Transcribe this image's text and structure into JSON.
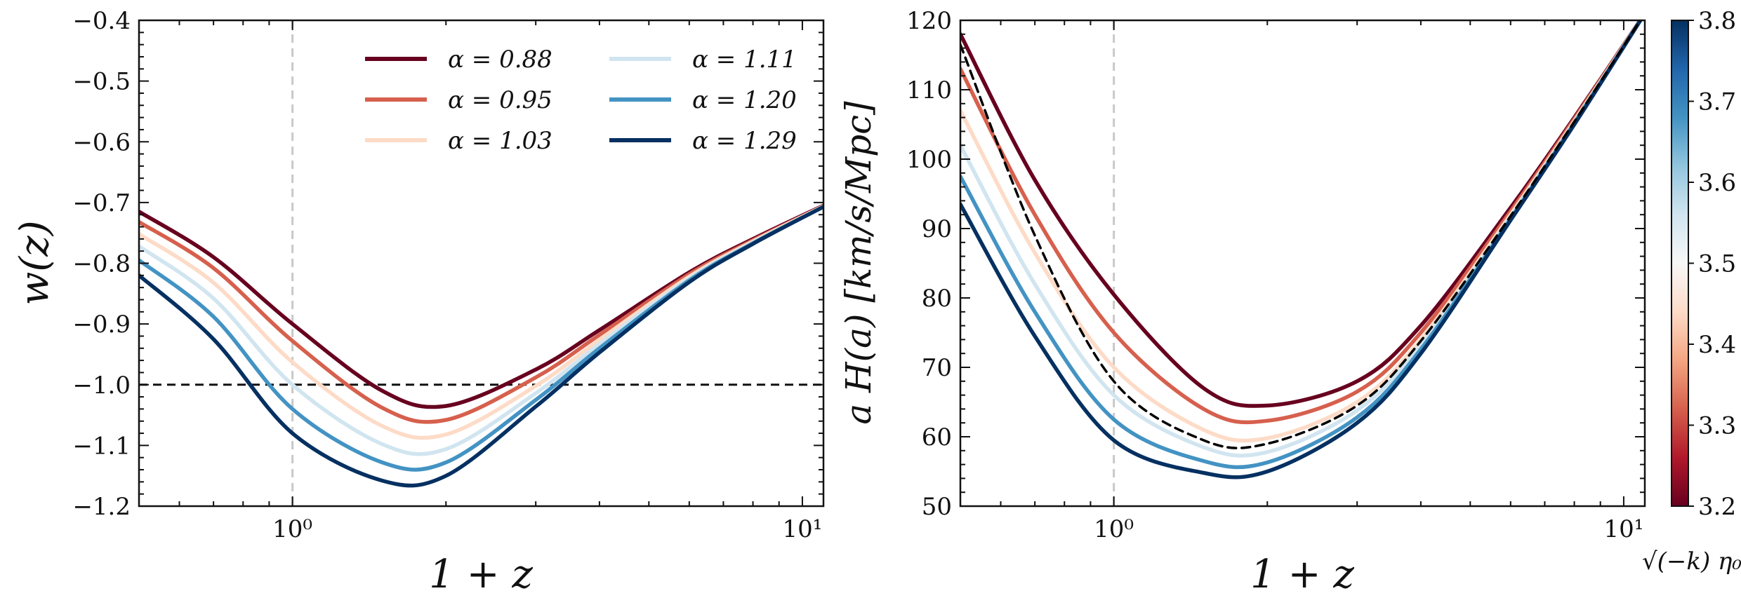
{
  "chart_data": [
    {
      "id": "left",
      "type": "line",
      "xlabel": "1 + z",
      "ylabel": "w(z)",
      "xscale": "log",
      "xlim": [
        0.5,
        11
      ],
      "ylim": [
        -1.2,
        -0.4
      ],
      "xticks": [
        {
          "value": 1,
          "label": "10⁰"
        },
        {
          "value": 10,
          "label": "10¹"
        }
      ],
      "yticks": [
        {
          "value": -0.4,
          "label": "−0.4"
        },
        {
          "value": -0.5,
          "label": "−0.5"
        },
        {
          "value": -0.6,
          "label": "−0.6"
        },
        {
          "value": -0.7,
          "label": "−0.7"
        },
        {
          "value": -0.8,
          "label": "−0.8"
        },
        {
          "value": -0.9,
          "label": "−0.9"
        },
        {
          "value": -1.0,
          "label": "−1.0"
        },
        {
          "value": -1.1,
          "label": "−1.1"
        },
        {
          "value": -1.2,
          "label": "−1.2"
        }
      ],
      "reference_lines": [
        {
          "orientation": "horizontal",
          "value": -1.0,
          "style": "dashed",
          "color": "#111111"
        },
        {
          "orientation": "vertical",
          "value": 1.0,
          "style": "dashed",
          "color": "#c8c8c8"
        }
      ],
      "x": [
        0.5,
        0.7,
        1.0,
        1.5,
        2.0,
        3.0,
        4.0,
        6.0,
        8.0,
        11.0
      ],
      "series": [
        {
          "name": "α = 0.88",
          "color": "#67001f",
          "values": [
            -0.715,
            -0.79,
            -0.9,
            -1.01,
            -1.035,
            -0.975,
            -0.91,
            -0.815,
            -0.76,
            -0.705
          ]
        },
        {
          "name": "α = 0.95",
          "color": "#d6604d",
          "values": [
            -0.732,
            -0.808,
            -0.928,
            -1.038,
            -1.058,
            -0.988,
            -0.918,
            -0.818,
            -0.762,
            -0.706
          ]
        },
        {
          "name": "α = 1.03",
          "color": "#fddbc7",
          "values": [
            -0.752,
            -0.832,
            -0.963,
            -1.068,
            -1.082,
            -1.002,
            -0.926,
            -0.822,
            -0.764,
            -0.706
          ]
        },
        {
          "name": "α = 1.11",
          "color": "#d1e5f0",
          "values": [
            -0.772,
            -0.858,
            -1.0,
            -1.098,
            -1.106,
            -1.014,
            -0.933,
            -0.825,
            -0.766,
            -0.707
          ]
        },
        {
          "name": "α = 1.20",
          "color": "#4393c3",
          "values": [
            -0.795,
            -0.888,
            -1.04,
            -1.128,
            -1.128,
            -1.025,
            -0.94,
            -0.828,
            -0.767,
            -0.707
          ]
        },
        {
          "name": "α = 1.29",
          "color": "#053061",
          "values": [
            -0.82,
            -0.925,
            -1.08,
            -1.158,
            -1.15,
            -1.036,
            -0.947,
            -0.831,
            -0.768,
            -0.707
          ]
        }
      ],
      "legend": {
        "placement": "top-right",
        "columns": 2
      }
    },
    {
      "id": "right",
      "type": "line",
      "xlabel": "1 + z",
      "ylabel": "a H(a) [km/s/Mpc]",
      "xscale": "log",
      "xlim": [
        0.5,
        11
      ],
      "ylim": [
        50,
        120
      ],
      "xticks": [
        {
          "value": 1,
          "label": "10⁰"
        },
        {
          "value": 10,
          "label": "10¹"
        }
      ],
      "yticks": [
        {
          "value": 50,
          "label": "50"
        },
        {
          "value": 60,
          "label": "60"
        },
        {
          "value": 70,
          "label": "70"
        },
        {
          "value": 80,
          "label": "80"
        },
        {
          "value": 90,
          "label": "90"
        },
        {
          "value": 100,
          "label": "100"
        },
        {
          "value": 110,
          "label": "110"
        },
        {
          "value": 120,
          "label": "120"
        }
      ],
      "reference_lines": [
        {
          "orientation": "vertical",
          "value": 1.0,
          "style": "dashed",
          "color": "#c8c8c8"
        }
      ],
      "x": [
        0.5,
        0.7,
        1.0,
        1.5,
        2.0,
        3.0,
        4.0,
        6.0,
        8.0,
        11.0
      ],
      "series": [
        {
          "name": "α = 0.88",
          "color": "#67001f",
          "values": [
            118.0,
            97.0,
            80.5,
            67.0,
            64.5,
            68.0,
            76.0,
            93.0,
            106.0,
            121.0
          ]
        },
        {
          "name": "α = 0.95",
          "color": "#d6604d",
          "values": [
            113.0,
            92.0,
            75.0,
            64.0,
            62.3,
            66.5,
            75.0,
            92.5,
            105.8,
            121.0
          ]
        },
        {
          "name": "α = 1.03",
          "color": "#fddbc7",
          "values": [
            107.0,
            86.5,
            70.0,
            61.0,
            59.8,
            65.0,
            74.0,
            92.0,
            105.5,
            121.0
          ]
        },
        {
          "name": "α = 1.11",
          "color": "#d1e5f0",
          "values": [
            102.0,
            82.0,
            66.0,
            58.5,
            57.8,
            63.8,
            73.3,
            91.7,
            105.3,
            121.0
          ]
        },
        {
          "name": "α = 1.20",
          "color": "#4393c3",
          "values": [
            97.5,
            78.0,
            62.5,
            56.5,
            56.3,
            62.8,
            72.6,
            91.4,
            105.2,
            121.0
          ]
        },
        {
          "name": "α = 1.29",
          "color": "#053061",
          "values": [
            93.5,
            74.5,
            59.5,
            54.8,
            55.0,
            62.0,
            72.0,
            91.2,
            105.0,
            121.0
          ]
        },
        {
          "name": "reference",
          "color": "#000000",
          "dashed": true,
          "values": [
            116.5,
            89.0,
            68.0,
            59.5,
            59.0,
            64.5,
            73.8,
            91.8,
            105.4,
            121.0
          ]
        }
      ]
    }
  ],
  "colorbar": {
    "label": "√(−k) η₀",
    "range": [
      3.2,
      3.8
    ],
    "ticks": [
      "3.2",
      "3.3",
      "3.4",
      "3.5",
      "3.6",
      "3.7",
      "3.8"
    ],
    "colors": [
      "#67001f",
      "#b2182b",
      "#d6604d",
      "#f4a582",
      "#fddbc7",
      "#f7f7f7",
      "#d1e5f0",
      "#92c5de",
      "#4393c3",
      "#2166ac",
      "#053061"
    ]
  }
}
